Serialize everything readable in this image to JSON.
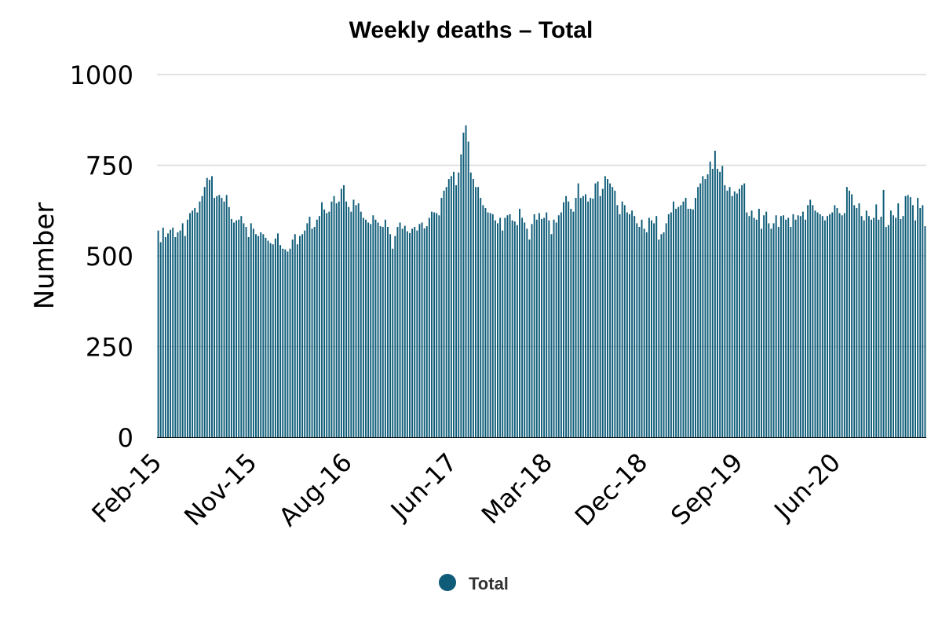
{
  "chart_data": {
    "type": "bar",
    "title": "Weekly deaths – Total",
    "xlabel": "",
    "ylabel": "Number",
    "ylim": [
      0,
      1000
    ],
    "yticks": [
      0,
      250,
      500,
      750,
      1000
    ],
    "grid": true,
    "legend_position": "bottom",
    "x_tick_labels": [
      "Feb-15",
      "Nov-15",
      "Aug-16",
      "Jun-17",
      "Mar-18",
      "Dec-18",
      "Sep-19",
      "Jun-20"
    ],
    "x_tick_positions_week_index": [
      0,
      39,
      78,
      121,
      160,
      199,
      238,
      278
    ],
    "series": [
      {
        "name": "Total",
        "color": "#0e5c78",
        "values": [
          570,
          538,
          578,
          552,
          562,
          572,
          578,
          552,
          565,
          570,
          590,
          555,
          600,
          618,
          625,
          632,
          620,
          650,
          665,
          690,
          715,
          710,
          720,
          660,
          665,
          668,
          660,
          650,
          668,
          635,
          602,
          592,
          598,
          600,
          610,
          590,
          580,
          552,
          590,
          575,
          560,
          555,
          565,
          560,
          550,
          542,
          535,
          532,
          548,
          562,
          530,
          520,
          518,
          512,
          520,
          545,
          560,
          532,
          555,
          560,
          570,
          590,
          608,
          575,
          580,
          600,
          610,
          648,
          628,
          618,
          622,
          650,
          665,
          645,
          650,
          685,
          695,
          650,
          635,
          622,
          655,
          640,
          645,
          622,
          605,
          600,
          592,
          588,
          612,
          600,
          592,
          582,
          580,
          600,
          580,
          560,
          520,
          555,
          580,
          592,
          575,
          583,
          568,
          563,
          575,
          580,
          570,
          588,
          592,
          576,
          582,
          605,
          622,
          620,
          618,
          612,
          660,
          680,
          690,
          712,
          720,
          732,
          695,
          730,
          780,
          840,
          860,
          815,
          730,
          712,
          690,
          690,
          660,
          640,
          632,
          620,
          618,
          615,
          598,
          590,
          605,
          570,
          605,
          612,
          615,
          598,
          595,
          585,
          630,
          605,
          592,
          575,
          545,
          588,
          615,
          600,
          618,
          602,
          605,
          620,
          598,
          560,
          600,
          592,
          612,
          620,
          648,
          665,
          650,
          630,
          622,
          660,
          700,
          660,
          665,
          670,
          650,
          660,
          658,
          700,
          705,
          665,
          685,
          720,
          712,
          700,
          690,
          680,
          640,
          615,
          650,
          640,
          620,
          615,
          625,
          610,
          590,
          580,
          600,
          575,
          565,
          605,
          598,
          590,
          610,
          545,
          560,
          565,
          590,
          615,
          620,
          650,
          630,
          635,
          640,
          650,
          660,
          630,
          630,
          628,
          660,
          690,
          700,
          720,
          712,
          725,
          760,
          740,
          790,
          740,
          732,
          748,
          695,
          680,
          690,
          665,
          678,
          672,
          685,
          695,
          700,
          620,
          610,
          625,
          605,
          600,
          630,
          575,
          612,
          622,
          590,
          575,
          590,
          612,
          580,
          610,
          612,
          600,
          605,
          580,
          615,
          600,
          612,
          610,
          622,
          600,
          640,
          655,
          640,
          625,
          620,
          615,
          610,
          598,
          610,
          615,
          620,
          640,
          632,
          618,
          612,
          618,
          690,
          680,
          670,
          640,
          632,
          645,
          610,
          598,
          625,
          610,
          600,
          605,
          642,
          600,
          608,
          682,
          580,
          585,
          625,
          612,
          605,
          645,
          602,
          610,
          665,
          668,
          662,
          640,
          598,
          660,
          632,
          640,
          582
        ]
      }
    ]
  },
  "legend": {
    "items": [
      {
        "label": "Total",
        "color": "#0e5c78"
      }
    ]
  }
}
